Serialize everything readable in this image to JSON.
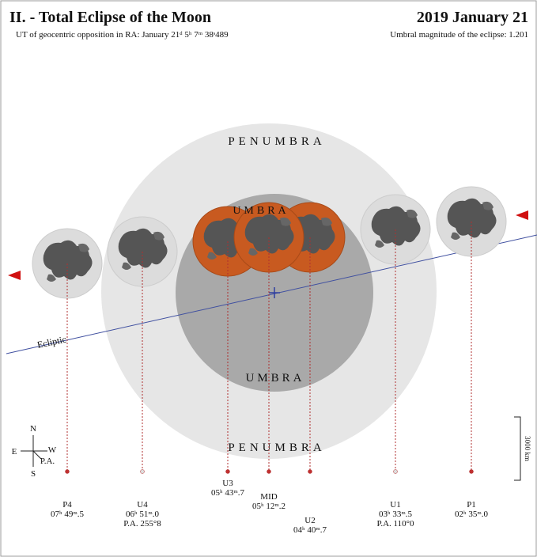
{
  "header": {
    "title": "II. - Total Eclipse of the Moon",
    "date": "2019 January 21",
    "opposition": "UT of geocentric opposition in RA: January 21ᵈ 5ʰ 7ᵐ 38ˢ489",
    "magnitude": "Umbral magnitude of the eclipse: 1.201"
  },
  "regions": {
    "penumbra_top": "PENUMBRA",
    "umbra_top": "UMBRA",
    "umbra_bottom": "UMBRA",
    "penumbra_bottom": "PENUMBRA",
    "ecliptic": "Ecliptic"
  },
  "compass": {
    "north": "N",
    "south": "S",
    "east": "E",
    "west": "W",
    "pa": "P.A."
  },
  "scale": "3000 km",
  "contacts": [
    {
      "label": "P4",
      "time": "07ʰ 49ᵐ.5"
    },
    {
      "label": "U4",
      "time": "06ʰ 51ᵐ.0",
      "pa": "P.A. 255°8"
    },
    {
      "label": "U3",
      "time": "05ʰ 43ᵐ.7"
    },
    {
      "label": "MID",
      "time": "05ʰ 12ᵐ.2"
    },
    {
      "label": "U2",
      "time": "04ʰ 40ᵐ.7"
    },
    {
      "label": "U1",
      "time": "03ʰ 33ᵐ.5",
      "pa": "P.A. 110°0"
    },
    {
      "label": "P1",
      "time": "02ʰ 35ᵐ.0"
    }
  ]
}
